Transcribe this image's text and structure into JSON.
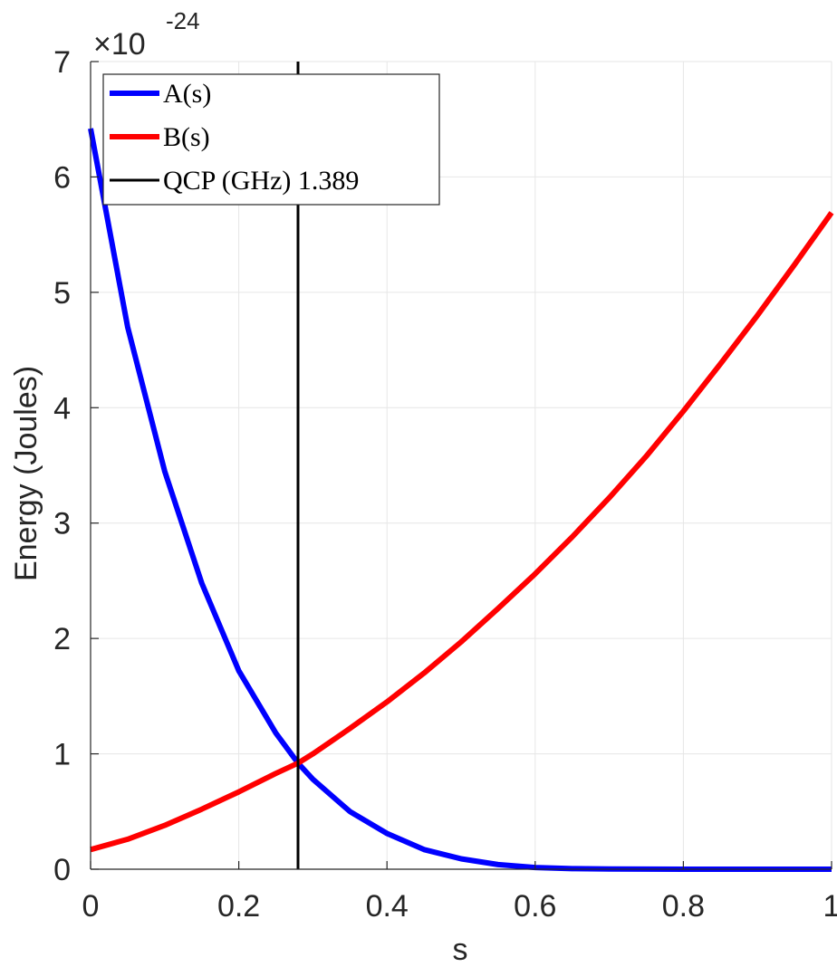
{
  "chart_data": {
    "type": "line",
    "xlabel": "s",
    "ylabel": "Energy (Joules)",
    "y_exponent": {
      "base": "×10",
      "power": "-24"
    },
    "xlim": [
      0,
      1
    ],
    "ylim": [
      0,
      7
    ],
    "x_ticks": [
      0,
      0.2,
      0.4,
      0.6,
      0.8,
      1
    ],
    "x_tick_labels": [
      "0",
      "0.2",
      "0.4",
      "0.6",
      "0.8",
      "1"
    ],
    "y_ticks": [
      0,
      1,
      2,
      3,
      4,
      5,
      6,
      7
    ],
    "y_tick_labels": [
      "0",
      "1",
      "2",
      "3",
      "4",
      "5",
      "6",
      "7"
    ],
    "grid": true,
    "legend_position": "top-left",
    "series": [
      {
        "name": "A(s)",
        "color": "#0000ff",
        "x": [
          0,
          0.05,
          0.1,
          0.15,
          0.2,
          0.25,
          0.28,
          0.3,
          0.35,
          0.4,
          0.45,
          0.5,
          0.55,
          0.6,
          0.65,
          0.7,
          0.75,
          0.8,
          0.85,
          0.9,
          0.95,
          1
        ],
        "y": [
          6.42,
          4.7,
          3.45,
          2.48,
          1.72,
          1.18,
          0.92,
          0.78,
          0.5,
          0.31,
          0.17,
          0.09,
          0.04,
          0.015,
          0.005,
          0.002,
          0.001,
          0,
          0,
          0,
          0,
          0
        ]
      },
      {
        "name": "B(s)",
        "color": "#ff0000",
        "x": [
          0,
          0.05,
          0.1,
          0.15,
          0.2,
          0.25,
          0.28,
          0.3,
          0.35,
          0.4,
          0.45,
          0.5,
          0.55,
          0.6,
          0.65,
          0.7,
          0.75,
          0.8,
          0.85,
          0.9,
          0.95,
          1
        ],
        "y": [
          0.17,
          0.26,
          0.38,
          0.52,
          0.67,
          0.83,
          0.92,
          1.0,
          1.22,
          1.45,
          1.7,
          1.97,
          2.26,
          2.56,
          2.88,
          3.22,
          3.58,
          3.97,
          4.38,
          4.8,
          5.24,
          5.69
        ]
      },
      {
        "name": "QCP (GHz) 1.389",
        "color": "#000000",
        "x": [
          0.28,
          0.28
        ],
        "y": [
          0,
          7
        ]
      }
    ]
  }
}
